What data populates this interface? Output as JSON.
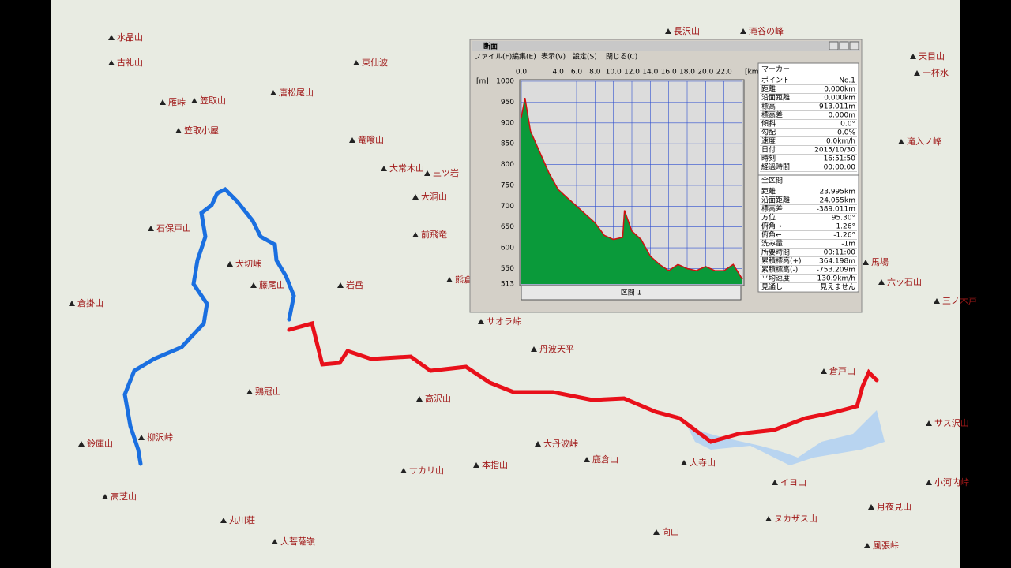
{
  "map": {
    "labels": [
      "水晶山",
      "古礼山",
      "雁峠",
      "笠取山",
      "唐松尾山",
      "笠取小屋",
      "東仙波",
      "竜喰山",
      "大常木山",
      "三ツ岩",
      "大洞山",
      "前飛竜",
      "石保戸山",
      "犬切峠",
      "藤尾山",
      "倉掛山",
      "岩岳",
      "熊倉山",
      "サオラ峠",
      "丹波天平",
      "鶏冠山",
      "高沢山",
      "柳沢峠",
      "鈴庫山",
      "高芝山",
      "大丹波峠",
      "鹿倉山",
      "大寺山",
      "本指山",
      "サカリ山",
      "丸川荘",
      "大菩薩嶺",
      "倉戸山",
      "サス沢山",
      "イヨ山",
      "月夜見山",
      "ヌカザス山",
      "風張峠",
      "向山",
      "天目山",
      "滝入ノ峰",
      "六ッ石山",
      "三ノ木戸",
      "馬場",
      "長沢山",
      "滝谷の峰",
      "一杯水",
      "小河内峠"
    ]
  },
  "window": {
    "title": "断面",
    "menu": [
      "ファイル(F)",
      "編集(E)",
      "表示(V)",
      "設定(S)",
      "閉じる(C)"
    ],
    "section_button": "区間 1",
    "marker": {
      "header": "マーカー",
      "rows": [
        [
          "ポイント:",
          "No.1"
        ],
        [
          "距離",
          "0.000km"
        ],
        [
          "沿面距離",
          "0.000km"
        ],
        [
          "標高",
          "913.011m"
        ],
        [
          "標高差",
          "0.000m"
        ],
        [
          "傾斜",
          "0.0°"
        ],
        [
          "勾配",
          "0.0%"
        ],
        [
          "速度",
          "0.0km/h"
        ],
        [
          "日付",
          "2015/10/30"
        ],
        [
          "時刻",
          "16:51:50"
        ],
        [
          "経過時間",
          "00:00:00"
        ]
      ]
    },
    "total": {
      "header": "全区間",
      "rows": [
        [
          "距離",
          "23.995km"
        ],
        [
          "沿面距離",
          "24.055km"
        ],
        [
          "標高差",
          "-389.011m"
        ],
        [
          "方位",
          "95.30°"
        ],
        [
          "俯角→",
          "1.26°"
        ],
        [
          "俯角←",
          "-1.26°"
        ],
        [
          "洗み量",
          "-1m"
        ],
        [
          "所要時間",
          "00:11:00"
        ],
        [
          "累積標高(+)",
          "364.198m"
        ],
        [
          "累積標高(-)",
          "-753.209m"
        ],
        [
          "平均速度",
          "130.9km/h"
        ],
        [
          "見通し",
          "見えません"
        ]
      ]
    }
  },
  "chart_data": {
    "type": "area",
    "y_unit": "[m]",
    "x_unit": "[km]",
    "x": [
      0,
      0.4,
      1,
      2,
      3,
      4,
      5,
      6,
      7,
      8,
      9,
      10,
      11,
      11.2,
      12,
      13,
      14,
      15,
      16,
      17,
      18,
      19,
      20,
      21,
      22,
      23,
      24
    ],
    "series": [
      {
        "color": "#d01010",
        "fill": "#0a9a3a",
        "values": [
          913,
          960,
          880,
          830,
          780,
          740,
          720,
          700,
          680,
          660,
          630,
          620,
          625,
          690,
          640,
          620,
          580,
          560,
          545,
          560,
          550,
          545,
          555,
          545,
          545,
          560,
          524
        ]
      }
    ],
    "xlim": [
      0,
      24
    ],
    "ylim": [
      513,
      1000
    ],
    "xticks": [
      {
        "value": 0,
        "label": "0.0"
      },
      {
        "value": 4,
        "label": "4.0"
      },
      {
        "value": 6,
        "label": "6.0"
      },
      {
        "value": 8,
        "label": "8.0"
      },
      {
        "value": 10,
        "label": "10.0"
      },
      {
        "value": 12,
        "label": "12.0"
      },
      {
        "value": 14,
        "label": "14.0"
      },
      {
        "value": 16,
        "label": "16.0"
      },
      {
        "value": 18,
        "label": "18.0"
      },
      {
        "value": 20,
        "label": "20.0"
      },
      {
        "value": 22,
        "label": "22.0"
      }
    ],
    "yticks": [
      1000,
      950,
      900,
      850,
      800,
      750,
      700,
      650,
      600,
      550,
      513
    ],
    "grid": true
  }
}
